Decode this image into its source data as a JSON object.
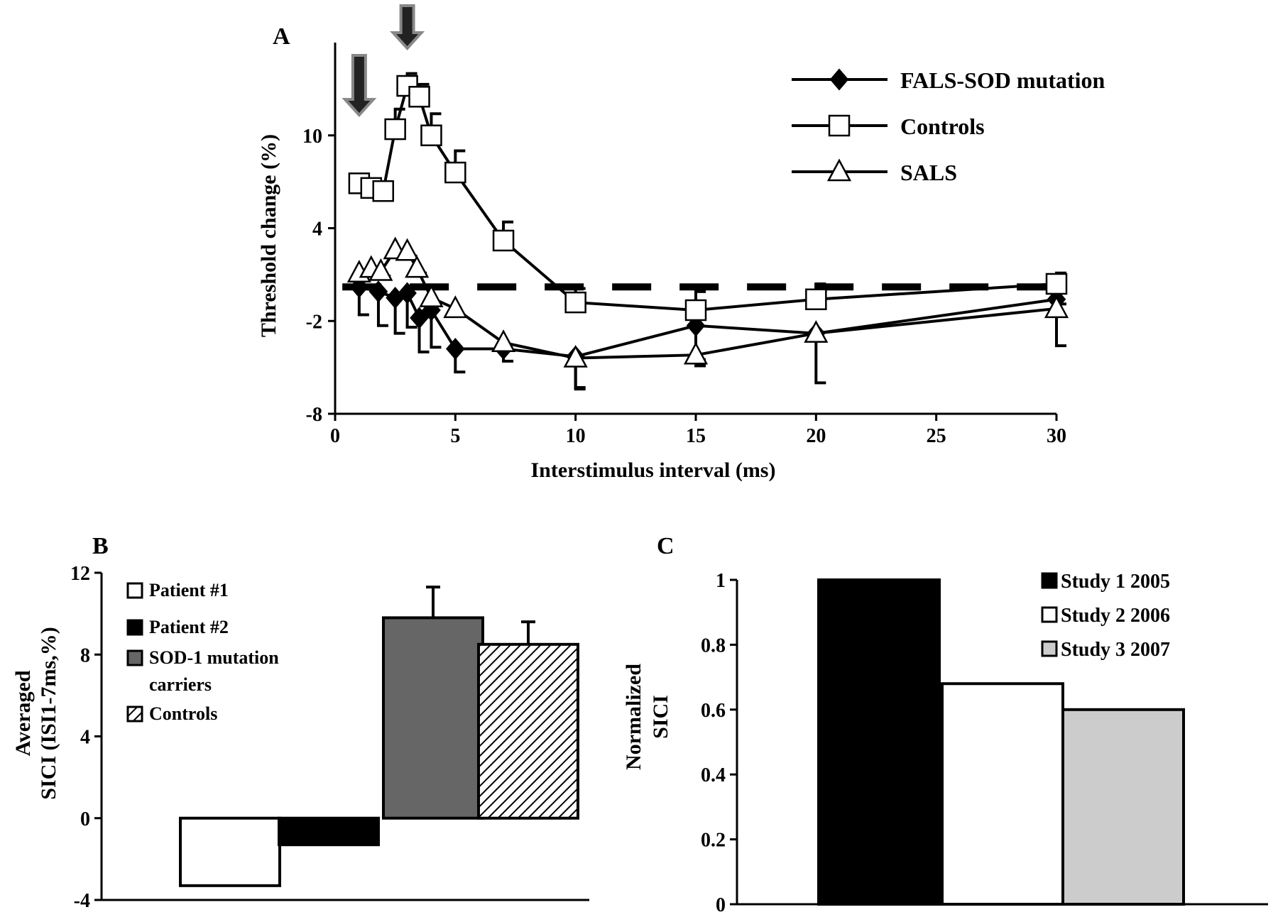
{
  "chart_data": [
    {
      "panel_label": "A",
      "type": "line",
      "xlabel": "Interstimulus interval (ms)",
      "ylabel": "Threshold change (%)",
      "xlim": [
        0,
        30
      ],
      "ylim": [
        -8,
        16
      ],
      "xticks": [
        0,
        5,
        10,
        15,
        20,
        25,
        30
      ],
      "xtick_labels": [
        "0",
        "5",
        "10",
        "15",
        "20",
        "25",
        "30"
      ],
      "yticks": [
        -8,
        -2,
        4,
        10
      ],
      "ytick_labels": [
        "-8",
        "-2",
        "4",
        "10"
      ],
      "legend_position": "top-right",
      "baseline": 0.2,
      "arrows_at_x": [
        1,
        3
      ],
      "series": [
        {
          "name": "FALS-SOD mutation",
          "marker": "diamond-filled",
          "x": [
            1,
            1.8,
            2.5,
            3,
            3.5,
            4,
            5,
            7,
            10,
            15,
            20,
            30
          ],
          "y": [
            0.2,
            -0.1,
            -0.5,
            -0.2,
            -1.8,
            -1.3,
            -3.8,
            -3.8,
            -4.3,
            -2.3,
            -2.8,
            -0.6
          ],
          "err": [
            1.8,
            2.2,
            2.3,
            2.2,
            2.2,
            2.4,
            1.5,
            0.8,
            2.0,
            2.6,
            0.5,
            0.3
          ]
        },
        {
          "name": "Controls",
          "marker": "square-open",
          "x": [
            1,
            1.5,
            2,
            2.5,
            3,
            3.5,
            4,
            5,
            7,
            10,
            15,
            20,
            30
          ],
          "y": [
            6.9,
            6.6,
            6.4,
            10.4,
            13.2,
            12.5,
            10.0,
            7.6,
            3.2,
            -0.8,
            -1.3,
            -0.6,
            0.4
          ],
          "err": [
            0.4,
            0.5,
            0.5,
            1.3,
            0.8,
            0.8,
            1.4,
            1.4,
            1.2,
            0.9,
            1.2,
            1.0,
            0.7
          ]
        },
        {
          "name": "SALS",
          "marker": "triangle-open",
          "x": [
            1,
            1.5,
            1.9,
            2.5,
            3,
            3.4,
            4,
            5,
            7,
            10,
            15,
            20,
            30
          ],
          "y": [
            1.1,
            1.4,
            1.2,
            2.6,
            2.5,
            1.4,
            -0.5,
            -1.2,
            -3.4,
            -4.4,
            -4.2,
            -2.8,
            -1.2
          ],
          "err": [
            0.3,
            0.3,
            0.3,
            0.3,
            0.3,
            0.3,
            0.3,
            0.4,
            0.4,
            2.0,
            0.3,
            3.2,
            2.4
          ]
        }
      ]
    },
    {
      "panel_label": "B",
      "type": "bar",
      "ylabel_line1": "Averaged",
      "ylabel_line2": "SICI (ISI1-7ms,%)",
      "ylim": [
        -4,
        12
      ],
      "yticks": [
        -4,
        0,
        4,
        8,
        12
      ],
      "ytick_labels": [
        "-4",
        "0",
        "4",
        "8",
        "12"
      ],
      "legend_position": "top-left",
      "categories": [
        "Patient #1",
        "Patient #2",
        "SOD-1 mutation carriers",
        "Controls"
      ],
      "legend_lines": [
        [
          "Patient #1"
        ],
        [
          "Patient #2"
        ],
        [
          "SOD-1 mutation",
          "carriers"
        ],
        [
          "Controls"
        ]
      ],
      "values": [
        -3.3,
        -1.3,
        9.8,
        8.5
      ],
      "err": [
        null,
        null,
        1.5,
        1.1
      ],
      "fills": [
        "white",
        "#000000",
        "#666666",
        "hatch"
      ]
    },
    {
      "panel_label": "C",
      "type": "bar",
      "ylabel_line1": "Normalized",
      "ylabel_line2": "SICI",
      "ylim": [
        0,
        1
      ],
      "yticks": [
        0,
        0.2,
        0.4,
        0.6,
        0.8,
        1
      ],
      "ytick_labels": [
        "0",
        "0.2",
        "0.4",
        "0.6",
        "0.8",
        "1"
      ],
      "legend_position": "top-right",
      "categories": [
        "Study 1 2005",
        "Study 2 2006",
        "Study 3 2007"
      ],
      "values": [
        1.0,
        0.68,
        0.6
      ],
      "fills": [
        "#000000",
        "#ffffff",
        "#cccccc"
      ]
    }
  ]
}
